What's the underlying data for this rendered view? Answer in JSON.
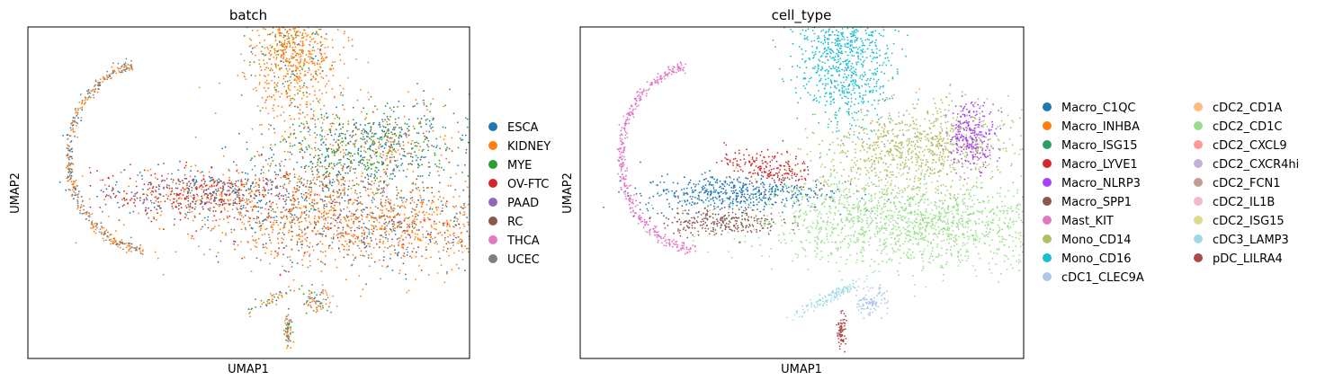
{
  "figure": {
    "panels": [
      {
        "title": "batch",
        "xlabel": "UMAP1",
        "ylabel": "UMAP2",
        "legend": [
          {
            "label": "ESCA",
            "color": "#1f77b4"
          },
          {
            "label": "KIDNEY",
            "color": "#ff7f0e"
          },
          {
            "label": "MYE",
            "color": "#2ca02c"
          },
          {
            "label": "OV-FTC",
            "color": "#d62728"
          },
          {
            "label": "PAAD",
            "color": "#9467bd"
          },
          {
            "label": "RC",
            "color": "#8c564b"
          },
          {
            "label": "THCA",
            "color": "#e377c2"
          },
          {
            "label": "UCEC",
            "color": "#7f7f7f"
          }
        ]
      },
      {
        "title": "cell_type",
        "xlabel": "UMAP1",
        "ylabel": "UMAP2",
        "legend": [
          {
            "label": "Macro_C1QC",
            "color": "#1f77b4"
          },
          {
            "label": "Macro_INHBA",
            "color": "#ff7f0e"
          },
          {
            "label": "Macro_ISG15",
            "color": "#279e68"
          },
          {
            "label": "Macro_LYVE1",
            "color": "#d62728"
          },
          {
            "label": "Macro_NLRP3",
            "color": "#aa40fc"
          },
          {
            "label": "Macro_SPP1",
            "color": "#8c564b"
          },
          {
            "label": "Mast_KIT",
            "color": "#e377c2"
          },
          {
            "label": "Mono_CD14",
            "color": "#b5bd61"
          },
          {
            "label": "Mono_CD16",
            "color": "#17becf"
          },
          {
            "label": "cDC1_CLEC9A",
            "color": "#aec7e8"
          },
          {
            "label": "cDC2_CD1A",
            "color": "#ffbb78"
          },
          {
            "label": "cDC2_CD1C",
            "color": "#98df8a"
          },
          {
            "label": "cDC2_CXCL9",
            "color": "#ff9896"
          },
          {
            "label": "cDC2_CXCR4hi",
            "color": "#c5b0d5"
          },
          {
            "label": "cDC2_FCN1",
            "color": "#c49c94"
          },
          {
            "label": "cDC2_IL1B",
            "color": "#f7b6d2"
          },
          {
            "label": "cDC2_ISG15",
            "color": "#dbdb8d"
          },
          {
            "label": "cDC3_LAMP3",
            "color": "#9edae5"
          },
          {
            "label": "pDC_LILRA4",
            "color": "#ad494a"
          }
        ]
      }
    ]
  },
  "chart_data": [
    {
      "type": "scatter",
      "title": "batch",
      "xlabel": "UMAP1",
      "ylabel": "UMAP2",
      "grid": false,
      "axis_ticks": "none",
      "legend_placement": "right-outside",
      "categories": [
        "ESCA",
        "KIDNEY",
        "MYE",
        "OV-FTC",
        "PAAD",
        "RC",
        "THCA",
        "UCEC"
      ],
      "clusters": [
        {
          "region": "top",
          "x": 6.0,
          "y": 8.2,
          "composition": {
            "KIDNEY": 0.85,
            "MYE": 0.1,
            "ESCA": 0.05
          }
        },
        {
          "region": "left-arc",
          "x": 0.6,
          "y": 5.0,
          "composition": {
            "KIDNEY": 0.5,
            "UCEC": 0.4,
            "ESCA": 0.1
          }
        },
        {
          "region": "left-arm",
          "x": 3.5,
          "y": 4.0,
          "composition": {
            "OV-FTC": 0.45,
            "ESCA": 0.3,
            "KIDNEY": 0.15,
            "UCEC": 0.1
          }
        },
        {
          "region": "upper-right",
          "x": 8.0,
          "y": 5.6,
          "composition": {
            "MYE": 0.4,
            "ESCA": 0.3,
            "KIDNEY": 0.2,
            "RC": 0.1
          }
        },
        {
          "region": "main-body",
          "x": 7.5,
          "y": 3.6,
          "composition": {
            "KIDNEY": 0.6,
            "ESCA": 0.15,
            "RC": 0.1,
            "UCEC": 0.1,
            "OV-FTC": 0.05
          }
        },
        {
          "region": "bottom-islands",
          "x": 6.2,
          "y": 1.0,
          "composition": {
            "KIDNEY": 0.4,
            "UCEC": 0.3,
            "MYE": 0.2,
            "ESCA": 0.1
          }
        }
      ]
    },
    {
      "type": "scatter",
      "title": "cell_type",
      "xlabel": "UMAP1",
      "ylabel": "UMAP2",
      "grid": false,
      "axis_ticks": "none",
      "legend_placement": "right-outside",
      "categories": [
        "Macro_C1QC",
        "Macro_INHBA",
        "Macro_ISG15",
        "Macro_LYVE1",
        "Macro_NLRP3",
        "Macro_SPP1",
        "Mast_KIT",
        "Mono_CD14",
        "Mono_CD16",
        "cDC1_CLEC9A",
        "cDC2_CD1A",
        "cDC2_CD1C",
        "cDC2_CXCL9",
        "cDC2_CXCR4hi",
        "cDC2_FCN1",
        "cDC2_IL1B",
        "cDC2_ISG15",
        "cDC3_LAMP3",
        "pDC_LILRA4"
      ],
      "clusters": [
        {
          "region": "top",
          "x": 6.0,
          "y": 8.2,
          "label": "Mono_CD16"
        },
        {
          "region": "left-arc",
          "x": 0.6,
          "y": 5.0,
          "label": "Mast_KIT"
        },
        {
          "region": "left-arm-upper",
          "x": 3.2,
          "y": 4.3,
          "label": "Macro_C1QC"
        },
        {
          "region": "left-arm-red",
          "x": 4.2,
          "y": 5.0,
          "label": "Macro_LYVE1"
        },
        {
          "region": "left-arm-lower",
          "x": 3.0,
          "y": 3.4,
          "label": "Macro_SPP1"
        },
        {
          "region": "upper-right",
          "x": 7.8,
          "y": 5.6,
          "label": "Mono_CD14"
        },
        {
          "region": "far-right",
          "x": 9.0,
          "y": 5.9,
          "label": "Macro_NLRP3"
        },
        {
          "region": "main-body",
          "x": 7.8,
          "y": 3.4,
          "label": "cDC2_CD1C"
        },
        {
          "region": "bottom-left-streak",
          "x": 5.6,
          "y": 1.4,
          "label": "cDC3_LAMP3"
        },
        {
          "region": "bottom-right-island",
          "x": 6.6,
          "y": 1.3,
          "label": "cDC1_CLEC9A"
        },
        {
          "region": "bottom-center",
          "x": 5.9,
          "y": 0.5,
          "label": "pDC_LILRA4"
        }
      ]
    }
  ]
}
